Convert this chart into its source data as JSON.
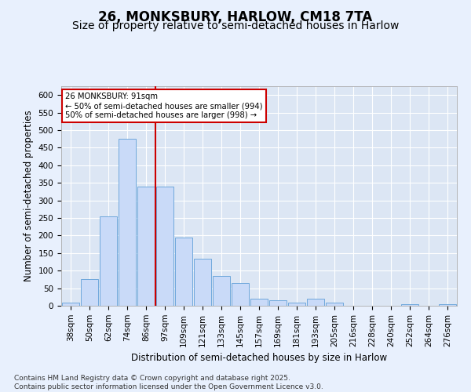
{
  "title": "26, MONKSBURY, HARLOW, CM18 7TA",
  "subtitle": "Size of property relative to semi-detached houses in Harlow",
  "xlabel": "Distribution of semi-detached houses by size in Harlow",
  "ylabel": "Number of semi-detached properties",
  "categories": [
    "38sqm",
    "50sqm",
    "62sqm",
    "74sqm",
    "86sqm",
    "97sqm",
    "109sqm",
    "121sqm",
    "133sqm",
    "145sqm",
    "157sqm",
    "169sqm",
    "181sqm",
    "193sqm",
    "205sqm",
    "216sqm",
    "228sqm",
    "240sqm",
    "252sqm",
    "264sqm",
    "276sqm"
  ],
  "values": [
    10,
    75,
    255,
    475,
    340,
    340,
    195,
    135,
    85,
    65,
    20,
    15,
    10,
    20,
    10,
    0,
    0,
    0,
    5,
    0,
    5
  ],
  "bar_color": "#c9daf8",
  "bar_edge_color": "#6fa8dc",
  "vline_x": 4.5,
  "vline_color": "#cc0000",
  "annotation_text": "26 MONKSBURY: 91sqm\n← 50% of semi-detached houses are smaller (994)\n50% of semi-detached houses are larger (998) →",
  "annotation_box_color": "#ffffff",
  "annotation_box_edge_color": "#cc0000",
  "background_color": "#e8f0fd",
  "plot_bg_color": "#dce6f4",
  "grid_color": "#ffffff",
  "ylim": [
    0,
    625
  ],
  "yticks": [
    0,
    50,
    100,
    150,
    200,
    250,
    300,
    350,
    400,
    450,
    500,
    550,
    600
  ],
  "footer": "Contains HM Land Registry data © Crown copyright and database right 2025.\nContains public sector information licensed under the Open Government Licence v3.0.",
  "title_fontsize": 12,
  "subtitle_fontsize": 10,
  "axis_label_fontsize": 8.5,
  "tick_fontsize": 7.5,
  "footer_fontsize": 6.5
}
